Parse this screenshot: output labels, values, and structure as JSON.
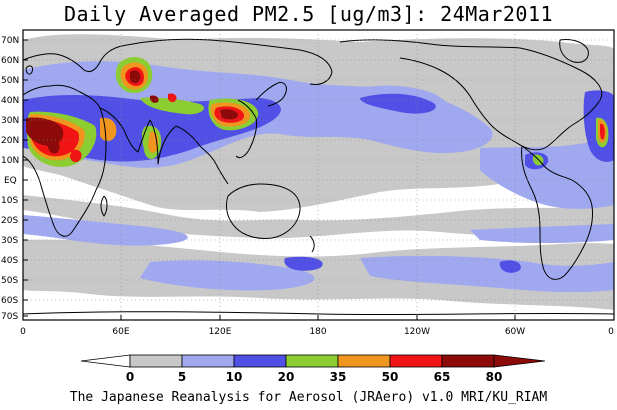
{
  "title": "Daily Averaged PM2.5 [ug/m3]: 24Mar2011",
  "credit": "The Japanese Reanalysis for Aerosol (JRAero) v1.0 MRI/KU_RIAM",
  "map": {
    "lat_ticks": [
      "70N",
      "60N",
      "50N",
      "40N",
      "30N",
      "20N",
      "10N",
      "EQ",
      "10S",
      "20S",
      "30S",
      "40S",
      "50S",
      "60S",
      "70S"
    ],
    "lon_ticks": [
      "0",
      "60E",
      "120E",
      "180",
      "120W",
      "60W",
      "0"
    ]
  },
  "legend": {
    "levels": [
      "0",
      "5",
      "10",
      "20",
      "35",
      "50",
      "65",
      "80"
    ],
    "colors": [
      "#ffffff",
      "#c8c8c8",
      "#a0a8f0",
      "#5050e6",
      "#8ccd32",
      "#f0961e",
      "#f01414",
      "#8c0a0a"
    ],
    "color_names": [
      "white",
      "light-gray",
      "light-blue",
      "blue",
      "green",
      "orange",
      "red",
      "dark-red"
    ]
  }
}
